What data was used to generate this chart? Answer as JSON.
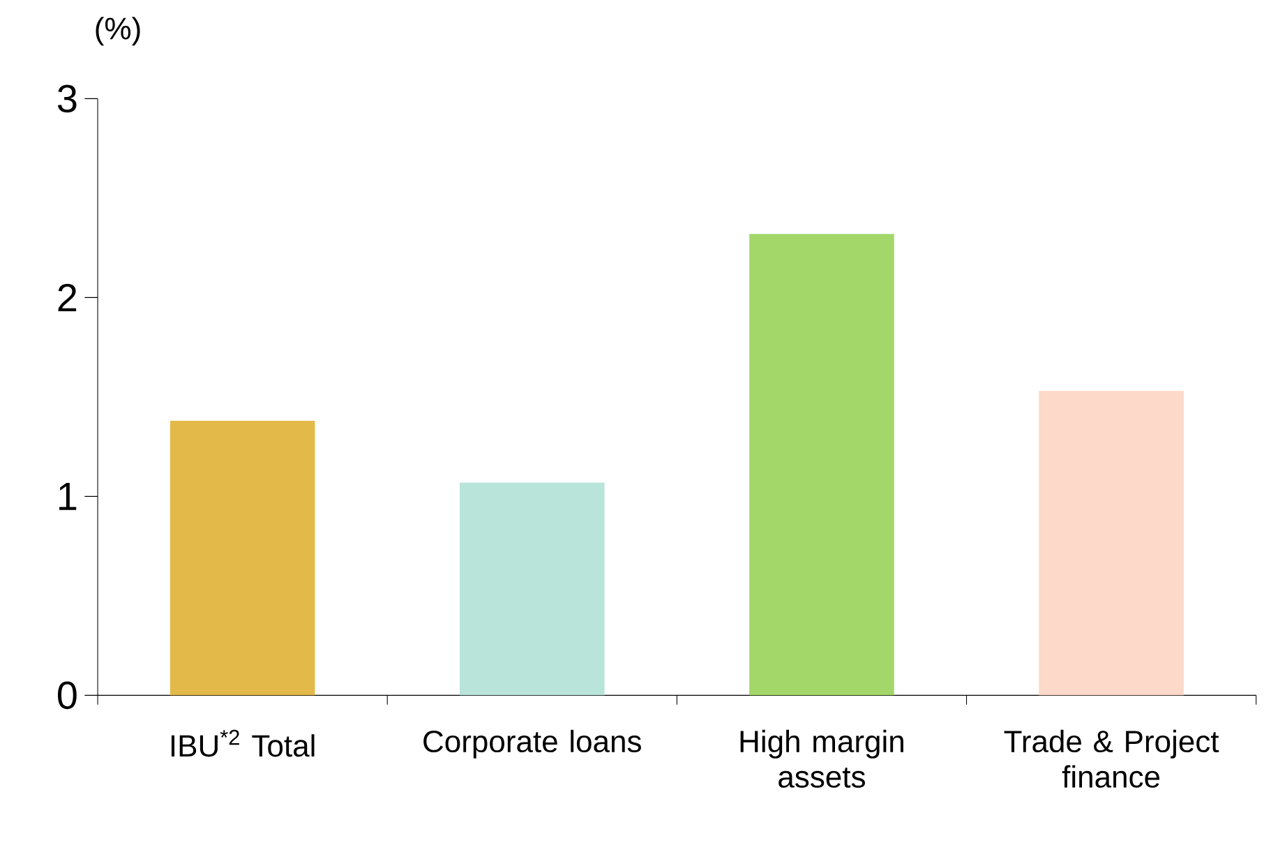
{
  "chart_data": {
    "type": "bar",
    "ylabel": "(%)",
    "categories": [
      "IBU$^{*2}$ Total",
      "Corporate loans",
      "High margin assets",
      "Trade & Project finance"
    ],
    "values": [
      1.38,
      1.07,
      2.32,
      1.53
    ],
    "colors": [
      "#e3b94a",
      "#b9e4da",
      "#a3d76a",
      "#fdd9c9"
    ],
    "ylim": [
      0,
      3
    ],
    "yticks": [
      0,
      1,
      2,
      3
    ],
    "grid": false
  }
}
